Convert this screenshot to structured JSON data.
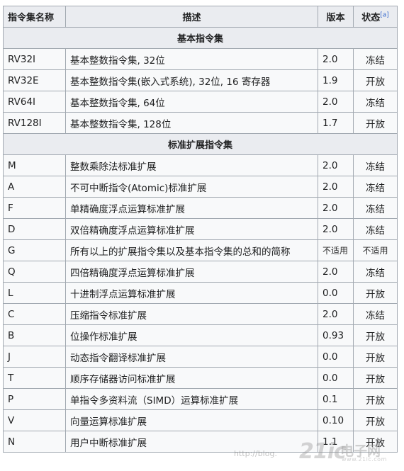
{
  "table": {
    "headers": {
      "name": "指令集名称",
      "desc": "描述",
      "version": "版本",
      "status": "状态",
      "status_ref": "[a]"
    },
    "sections": [
      {
        "title": "基本指令集",
        "rows": [
          {
            "name": "RV32I",
            "desc": "基本整数指令集, 32位",
            "version": "2.0",
            "status": "冻结",
            "kind": "frozen"
          },
          {
            "name": "RV32E",
            "desc": "基本整数指令集(嵌入式系统), 32位, 16 寄存器",
            "version": "1.9",
            "status": "开放",
            "kind": "open"
          },
          {
            "name": "RV64I",
            "desc": "基本整数指令集, 64位",
            "version": "2.0",
            "status": "冻结",
            "kind": "frozen"
          },
          {
            "name": "RV128I",
            "desc": "基本整数指令集, 128位",
            "version": "1.7",
            "status": "开放",
            "kind": "open"
          }
        ]
      },
      {
        "title": "标准扩展指令集",
        "rows": [
          {
            "name": "M",
            "desc": "整数乘除法标准扩展",
            "version": "2.0",
            "status": "冻结",
            "kind": "frozen"
          },
          {
            "name": "A",
            "desc": "不可中断指令(Atomic)标准扩展",
            "version": "2.0",
            "status": "冻结",
            "kind": "frozen"
          },
          {
            "name": "F",
            "desc": "单精确度浮点运算标准扩展",
            "version": "2.0",
            "status": "冻结",
            "kind": "frozen"
          },
          {
            "name": "D",
            "desc": "双倍精确度浮点运算标准扩展",
            "version": "2.0",
            "status": "冻结",
            "kind": "frozen"
          },
          {
            "name": "G",
            "desc": "所有以上的扩展指令集以及基本指令集的总和的简称",
            "version": "不适用",
            "status": "不适用",
            "kind": "na"
          },
          {
            "name": "Q",
            "desc": "四倍精确度浮点运算标准扩展",
            "version": "2.0",
            "status": "冻结",
            "kind": "frozen"
          },
          {
            "name": "L",
            "desc": "十进制浮点运算标准扩展",
            "version": "0.0",
            "status": "开放",
            "kind": "open"
          },
          {
            "name": "C",
            "desc": "压缩指令标准扩展",
            "version": "2.0",
            "status": "冻结",
            "kind": "frozen"
          },
          {
            "name": "B",
            "desc": "位操作标准扩展",
            "version": "0.93",
            "status": "开放",
            "kind": "open"
          },
          {
            "name": "J",
            "desc": "动态指令翻译标准扩展",
            "version": "0.0",
            "status": "开放",
            "kind": "open"
          },
          {
            "name": "T",
            "desc": "顺序存储器访问标准扩展",
            "version": "0.0",
            "status": "开放",
            "kind": "open"
          },
          {
            "name": "P",
            "desc": "单指令多资料流（SIMD）运算标准扩展",
            "version": "0.1",
            "status": "开放",
            "kind": "open"
          },
          {
            "name": "V",
            "desc": "向量运算标准扩展",
            "version": "0.10",
            "status": "开放",
            "kind": "open"
          },
          {
            "name": "N",
            "desc": "用户中断标准扩展",
            "version": "1.1",
            "status": "开放",
            "kind": "open"
          }
        ]
      }
    ]
  },
  "colors": {
    "frozen": "#9eff9e",
    "open": "#ffa0a0",
    "na": "#ececec",
    "header": "#eaecf0",
    "cell": "#f8f9fa",
    "border": "#a2a9b1"
  },
  "watermark": {
    "url": "http://blog.",
    "logo": "21ic",
    "brand": "电子网",
    "domain": "www.21ic.com"
  }
}
